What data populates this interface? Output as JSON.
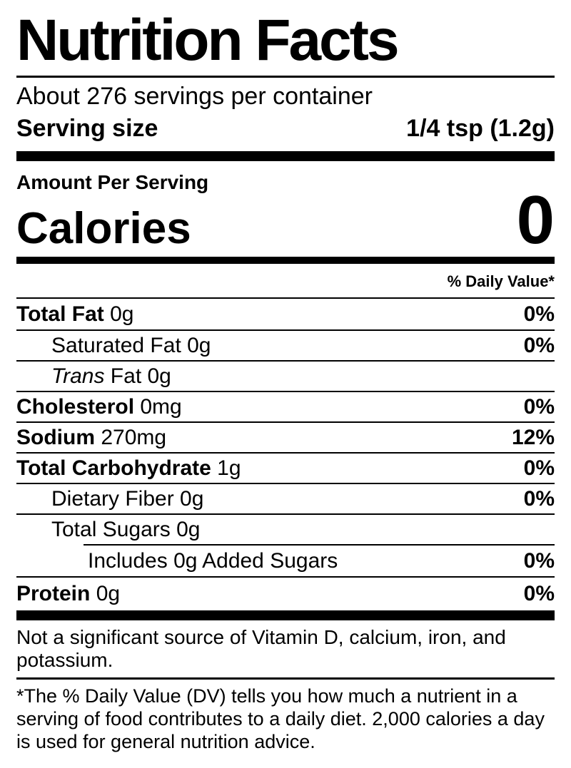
{
  "label": {
    "title": "Nutrition Facts",
    "servings_per_container": "About 276 servings per container",
    "serving_size_label": "Serving size",
    "serving_size_value": "1/4 tsp (1.2g)",
    "amount_per_serving": "Amount Per Serving",
    "calories_label": "Calories",
    "calories_value": "0",
    "daily_value_header": "% Daily Value*",
    "rows": [
      {
        "bold": "Total Fat",
        "italic": "",
        "rest": " 0g",
        "dv": "0%",
        "indent": 0
      },
      {
        "bold": "",
        "italic": "",
        "rest": "Saturated Fat 0g",
        "dv": "0%",
        "indent": 1
      },
      {
        "bold": "",
        "italic": "Trans",
        "rest": " Fat 0g",
        "dv": "",
        "indent": 1
      },
      {
        "bold": "Cholesterol",
        "italic": "",
        "rest": " 0mg",
        "dv": "0%",
        "indent": 0
      },
      {
        "bold": "Sodium",
        "italic": "",
        "rest": " 270mg",
        "dv": "12%",
        "indent": 0
      },
      {
        "bold": "Total Carbohydrate",
        "italic": "",
        "rest": " 1g",
        "dv": "0%",
        "indent": 0
      },
      {
        "bold": "",
        "italic": "",
        "rest": "Dietary Fiber 0g",
        "dv": "0%",
        "indent": 1
      },
      {
        "bold": "",
        "italic": "",
        "rest": "Total Sugars 0g",
        "dv": "",
        "indent": 1
      },
      {
        "bold": "",
        "italic": "",
        "rest": "Includes 0g Added Sugars",
        "dv": "0%",
        "indent": 2
      },
      {
        "bold": "Protein",
        "italic": "",
        "rest": " 0g",
        "dv": "0%",
        "indent": 0
      }
    ],
    "not_significant_note": "Not a significant source of Vitamin D, calcium, iron, and potassium.",
    "daily_value_footnote": "*The % Daily Value (DV) tells you how much a nutrient in a serving of food contributes to a daily diet. 2,000 calories a day is used for general nutrition advice.",
    "colors": {
      "text": "#000000",
      "background": "#ffffff"
    }
  }
}
